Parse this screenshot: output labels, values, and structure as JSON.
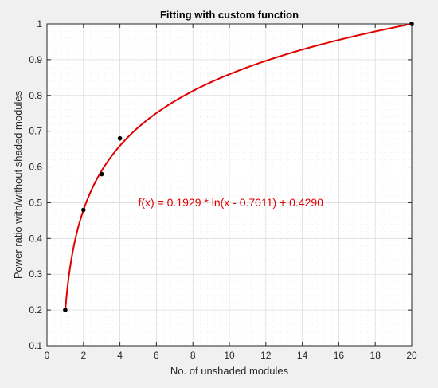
{
  "chart_data": {
    "type": "scatter",
    "title": "Fitting with custom function",
    "xlabel": "No. of unshaded modules",
    "ylabel": "Power ratio with/without shaded modules",
    "xlim": [
      0,
      20
    ],
    "ylim": [
      0.1,
      1
    ],
    "xticks": [
      "0",
      "2",
      "4",
      "6",
      "8",
      "10",
      "12",
      "14",
      "16",
      "18",
      "20"
    ],
    "yticks": [
      "0.1",
      "0.2",
      "0.3",
      "0.4",
      "0.5",
      "0.6",
      "0.7",
      "0.8",
      "0.9",
      "1"
    ],
    "grid": "major and minor",
    "points": {
      "x": [
        1,
        2,
        3,
        4,
        20
      ],
      "y": [
        0.2,
        0.48,
        0.58,
        0.68,
        1.0
      ],
      "color": "#000000"
    },
    "fit": {
      "type": "line",
      "equation": "f(x) = 0.1929 * ln(x - 0.7011) + 0.4290",
      "a": 0.1929,
      "b": 0.7011,
      "c": 0.429,
      "x_start": 1,
      "x_end": 20,
      "color": "#e00000"
    },
    "annotation": {
      "text": "f(x) = 0.1929 * ln(x - 0.7011) + 0.4290",
      "x": 5.0,
      "y": 0.49,
      "color": "#e00000"
    }
  }
}
